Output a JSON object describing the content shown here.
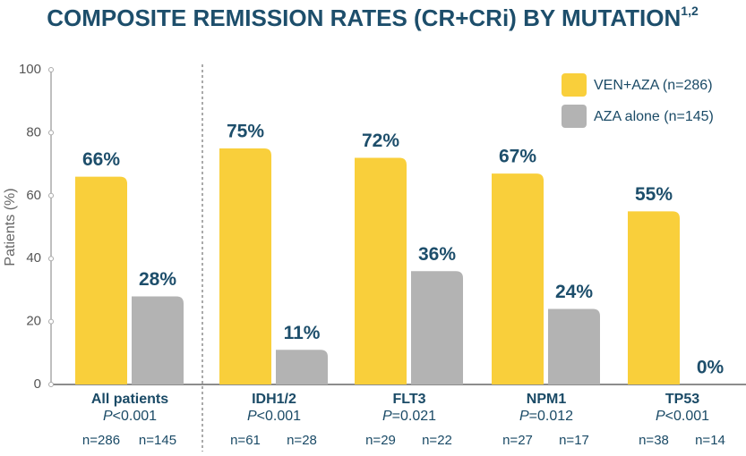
{
  "chart_data": {
    "type": "bar",
    "title": "COMPOSITE REMISSION RATES (CR+CRi) BY MUTATION",
    "title_superscript": "1,2",
    "y_label": "Patients (%)",
    "categories": [
      "All patients",
      "IDH1/2",
      "FLT3",
      "NPM1",
      "TP53"
    ],
    "p_values": [
      "P<0.001",
      "P<0.001",
      "P=0.021",
      "P=0.012",
      "P<0.001"
    ],
    "series": [
      {
        "name": "VEN+AZA (n=286)",
        "color": "#f9cf3b",
        "values": [
          66,
          75,
          72,
          67,
          55
        ],
        "value_labels": [
          "66%",
          "75%",
          "72%",
          "67%",
          "55%"
        ],
        "n_labels": [
          "n=286",
          "n=61",
          "n=29",
          "n=27",
          "n=38"
        ]
      },
      {
        "name": "AZA alone (n=145)",
        "color": "#b3b3b3",
        "values": [
          28,
          11,
          36,
          24,
          0
        ],
        "value_labels": [
          "28%",
          "11%",
          "36%",
          "24%",
          "0%"
        ],
        "n_labels": [
          "n=145",
          "n=28",
          "n=22",
          "n=17",
          "n=14"
        ]
      }
    ],
    "ylim": [
      0,
      100
    ],
    "yticks": [
      0,
      20,
      40,
      60,
      80,
      100
    ],
    "legend": "top-right"
  }
}
